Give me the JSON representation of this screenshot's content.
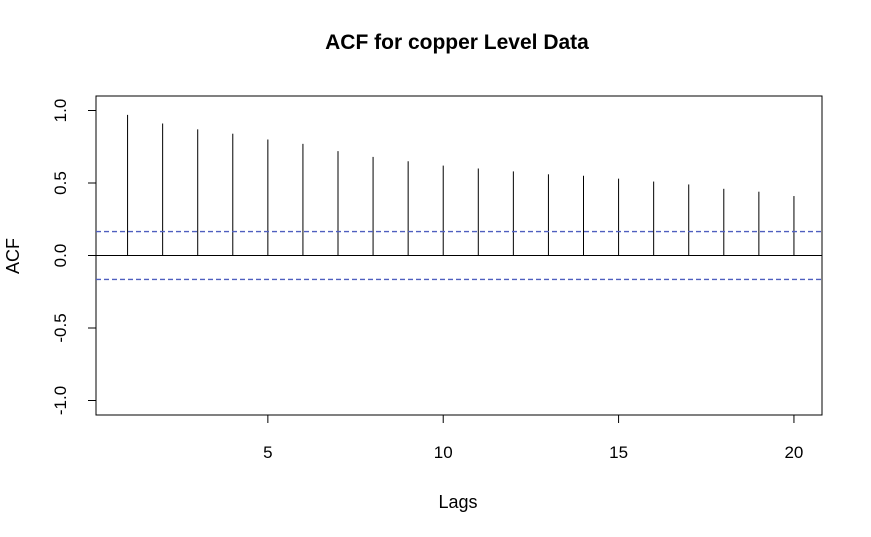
{
  "chart_data": {
    "type": "bar",
    "title": "ACF for copper Level Data",
    "xlabel": "Lags",
    "ylabel": "ACF",
    "x": [
      1,
      2,
      3,
      4,
      5,
      6,
      7,
      8,
      9,
      10,
      11,
      12,
      13,
      14,
      15,
      16,
      17,
      18,
      19,
      20
    ],
    "values": [
      0.97,
      0.91,
      0.87,
      0.84,
      0.8,
      0.77,
      0.72,
      0.68,
      0.65,
      0.62,
      0.6,
      0.58,
      0.56,
      0.55,
      0.53,
      0.51,
      0.49,
      0.46,
      0.44,
      0.41
    ],
    "confidence_bound": 0.165,
    "xlim": [
      0.1,
      20.8
    ],
    "ylim": [
      -1.1,
      1.1
    ],
    "xticks": [
      5,
      10,
      15,
      20
    ],
    "yticks": [
      -1.0,
      -0.5,
      0.0,
      0.5,
      1.0
    ],
    "xtick_labels": [
      "5",
      "10",
      "15",
      "20"
    ],
    "ytick_labels": [
      "-1.0",
      "-0.5",
      "0.0",
      "0.5",
      "1.0"
    ],
    "grid": false,
    "colors": {
      "bars": "#000000",
      "confidence_lines": "#4f5fbf",
      "zero_line": "#000000",
      "frame": "#000000"
    }
  }
}
